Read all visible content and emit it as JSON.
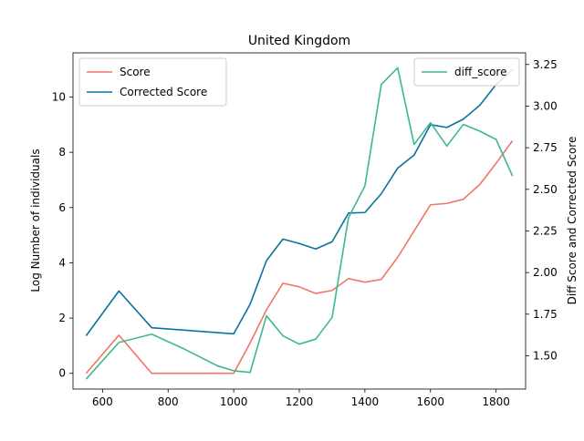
{
  "chart_data": {
    "type": "line",
    "title": "United Kingdom",
    "xlabel": "",
    "ylabel_left": "Log Number of individuals",
    "ylabel_right": "Diff Score and Corrected Score",
    "xlim": [
      510,
      1890
    ],
    "ylim_left": [
      -0.57,
      11.6
    ],
    "ylim_right": [
      1.3,
      3.32
    ],
    "x_ticks": [
      600,
      800,
      1000,
      1200,
      1400,
      1600,
      1800
    ],
    "y_ticks_left": [
      0,
      2,
      4,
      6,
      8,
      10
    ],
    "y_ticks_right": [
      1.5,
      1.75,
      2.0,
      2.25,
      2.5,
      2.75,
      3.0,
      3.25
    ],
    "grid": false,
    "legend_left": "upper left",
    "legend_right": "upper right",
    "series": [
      {
        "name": "Score",
        "axis": "left",
        "color": "#f07467",
        "x": [
          550,
          650,
          750,
          800,
          850,
          900,
          950,
          1000,
          1050,
          1100,
          1150,
          1200,
          1250,
          1300,
          1350,
          1400,
          1450,
          1500,
          1550,
          1600,
          1650,
          1700,
          1750,
          1800,
          1850
        ],
        "y": [
          0.0,
          1.38,
          0.0,
          0.0,
          0.0,
          0.0,
          0.0,
          0.0,
          1.1,
          2.3,
          3.26,
          3.13,
          2.89,
          3.0,
          3.43,
          3.3,
          3.4,
          4.2,
          5.15,
          6.1,
          6.15,
          6.3,
          6.83,
          7.6,
          8.42
        ]
      },
      {
        "name": "Corrected Score",
        "axis": "left",
        "color": "#0a72a0",
        "x": [
          550,
          650,
          750,
          1000,
          1050,
          1100,
          1150,
          1200,
          1250,
          1300,
          1350,
          1400,
          1450,
          1500,
          1550,
          1600,
          1650,
          1700,
          1750,
          1800,
          1850
        ],
        "y": [
          1.36,
          2.98,
          1.65,
          1.43,
          2.5,
          4.08,
          4.86,
          4.7,
          4.5,
          4.76,
          5.8,
          5.82,
          6.5,
          7.43,
          7.9,
          9.0,
          8.9,
          9.2,
          9.7,
          10.45,
          11.0
        ]
      },
      {
        "name": "diff_score",
        "axis": "right",
        "color": "#3cb88f",
        "x": [
          550,
          650,
          750,
          850,
          950,
          1000,
          1050,
          1100,
          1150,
          1200,
          1250,
          1300,
          1350,
          1400,
          1450,
          1500,
          1550,
          1600,
          1650,
          1700,
          1750,
          1800,
          1850
        ],
        "y": [
          1.36,
          1.58,
          1.63,
          1.54,
          1.44,
          1.41,
          1.4,
          1.74,
          1.62,
          1.57,
          1.6,
          1.73,
          2.33,
          2.52,
          3.13,
          3.23,
          2.77,
          2.9,
          2.76,
          2.89,
          2.85,
          2.8,
          2.58
        ]
      }
    ]
  }
}
